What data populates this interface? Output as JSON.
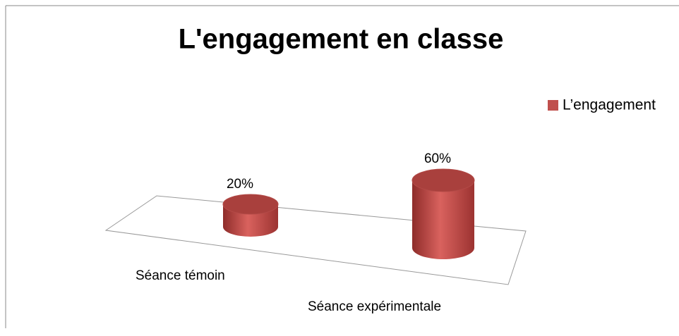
{
  "chart_data": {
    "type": "bar3d",
    "title": "L'engagement en classe",
    "categories": [
      "Séance témoin",
      "Séance expérimentale"
    ],
    "series": [
      {
        "name": "L’engagement",
        "color": "#c0504d",
        "values": [
          20,
          60
        ],
        "value_labels": [
          "20%",
          "60%"
        ]
      }
    ],
    "legend": "right"
  }
}
